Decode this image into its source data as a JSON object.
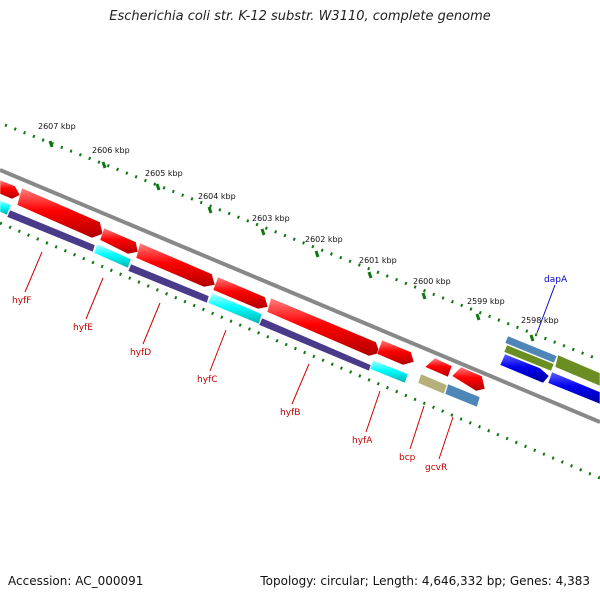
{
  "title": "Escherichia coli str. K-12 substr. W3110, complete genome",
  "accession": "Accession: AC_000091",
  "stats": "Topology: circular; Length: 4,646,332 bp; Genes: 4,383",
  "tick_labels": [
    "2607 kbp",
    "2606 kbp",
    "2605 kbp",
    "2604 kbp",
    "2603 kbp",
    "2602 kbp",
    "2601 kbp",
    "2600 kbp",
    "2599 kbp",
    "2598 kbp"
  ],
  "gene_labels": [
    {
      "name": "hyfF",
      "color": "red"
    },
    {
      "name": "hyfE",
      "color": "red"
    },
    {
      "name": "hyfD",
      "color": "red"
    },
    {
      "name": "hyfC",
      "color": "red"
    },
    {
      "name": "hyfB",
      "color": "red"
    },
    {
      "name": "hyfA",
      "color": "red"
    },
    {
      "name": "bcp",
      "color": "red"
    },
    {
      "name": "gcvR",
      "color": "red"
    },
    {
      "name": "dapA",
      "color": "blue"
    }
  ],
  "colors": {
    "tick": "#117711",
    "backbone": "#888888",
    "gene_red": "#ff0000",
    "gene_cyan": "#00ffff",
    "gene_purple": "#4a3a8a",
    "gene_blue": "#0000ee",
    "gene_steel": "#4f86b8",
    "gene_olive": "#6b8e23",
    "gene_khaki": "#b5b079"
  }
}
